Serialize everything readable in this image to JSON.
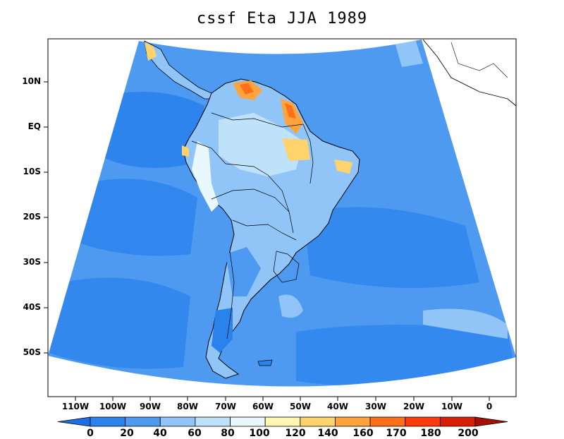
{
  "title": "cssf Eta JJA 1989",
  "lat_labels": [
    "10N",
    "EQ",
    "10S",
    "20S",
    "30S",
    "40S",
    "50S"
  ],
  "lon_labels": [
    "110W",
    "100W",
    "90W",
    "80W",
    "70W",
    "60W",
    "50W",
    "40W",
    "30W",
    "20W",
    "10W",
    "0"
  ],
  "colorbar": {
    "levels": [
      "0",
      "20",
      "40",
      "60",
      "80",
      "100",
      "120",
      "140",
      "160",
      "170",
      "180",
      "200"
    ],
    "colors": [
      "#1e6ee6",
      "#2a82ec",
      "#4d9af0",
      "#92c5f7",
      "#bfe2fb",
      "#e9f8ff",
      "#fff6b0",
      "#ffd36b",
      "#ffa43c",
      "#ff6f18",
      "#ff3a0a",
      "#d81e05",
      "#a50f04"
    ]
  },
  "map_colors": {
    "ocean": "#4d9af0",
    "deep": "#2a82ec",
    "land_fill": "#92c5f7",
    "highlands": "#bfe2fb",
    "hot1": "#ffd36b",
    "hot2": "#ffa43c",
    "hot3": "#ff6f18"
  }
}
